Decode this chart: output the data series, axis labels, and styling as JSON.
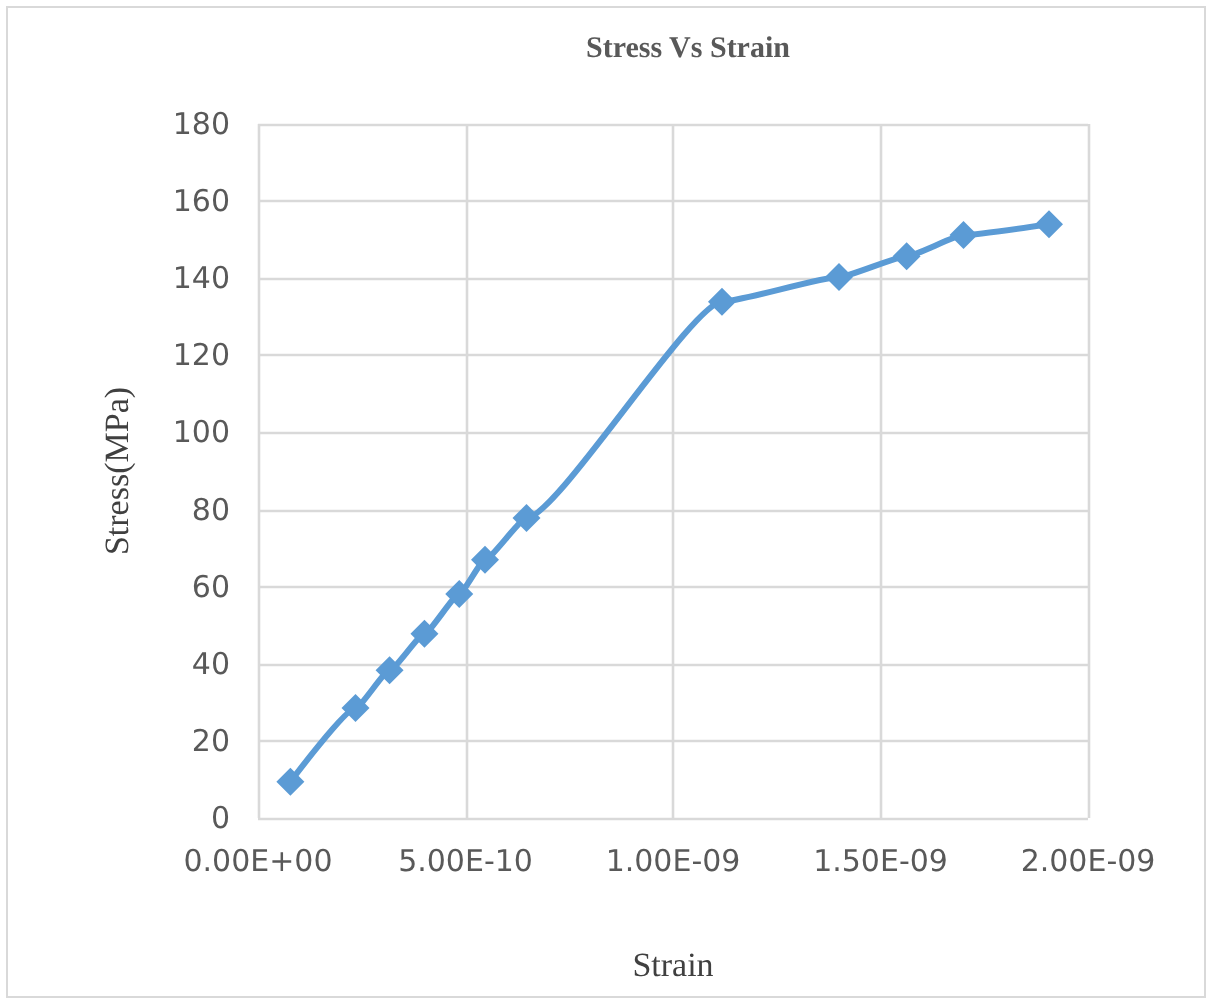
{
  "chart_data": {
    "type": "line",
    "title": "Stress Vs Strain",
    "xlabel": "Strain",
    "ylabel": "Stress(MPa)",
    "x": [
      7.8e-11,
      2.35e-10,
      3.17e-10,
      4.01e-10,
      4.85e-10,
      5.47e-10,
      6.47e-10,
      1.118e-09,
      1.4e-09,
      1.563e-09,
      1.7e-09,
      1.906e-09
    ],
    "series": [
      {
        "color": "#5b9bd5",
        "values": [
          9.4,
          28.5,
          38.3,
          47.8,
          58.1,
          67,
          77.8,
          133.9,
          140.3,
          145.7,
          151.2,
          154
        ]
      }
    ],
    "xlim": [
      0,
      2e-09
    ],
    "xticks": [
      {
        "value": 0,
        "label": "0.00E+00"
      },
      {
        "value": 5e-10,
        "label": "5.00E-10"
      },
      {
        "value": 1e-09,
        "label": "1.00E-09"
      },
      {
        "value": 1.5e-09,
        "label": "1.50E-09"
      },
      {
        "value": 2e-09,
        "label": "2.00E-09"
      }
    ],
    "ylim": [
      0,
      180
    ],
    "yticks": [
      0,
      20,
      40,
      60,
      80,
      100,
      120,
      140,
      160,
      180
    ],
    "grid": true,
    "marker": "diamond",
    "line_style": "solid"
  }
}
